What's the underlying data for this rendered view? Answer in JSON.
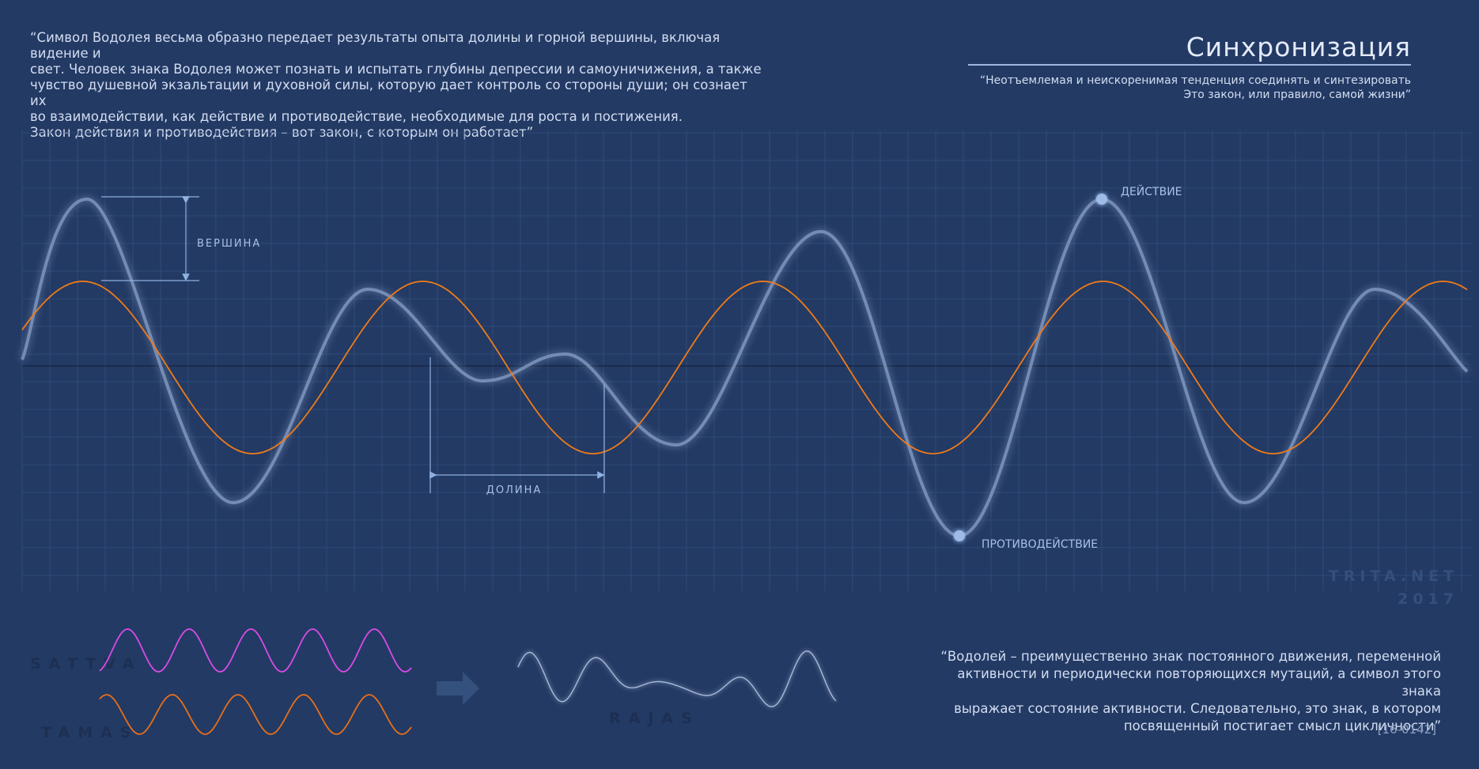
{
  "quote_left": "“Символ Водолея весьма образно передает результаты опыта долины и горной вершины, включая видение и\n   свет. Человек знака Водолея может познать и испытать глубины депрессии и самоуничижения, а также\n   чувство душевной экзальтации и духовной силы, которую дает контроль со стороны души; он сознает их\n   во взаимодействии, как действие и противодействие, необходимые для роста и постижения.\n   Закон действия и противодействия – вот закон, с которым он работает”",
  "title": "Синхронизация",
  "subtitle": "“Неотъемлемая и неискоренимая тенденция соединять и синтезировать\nЭто закон, или правило, самой жизни”",
  "diagram": {
    "label_peak": "ВЕРШИНА",
    "label_valley": "ДОЛИНА",
    "label_action": "ДЕЙСТВИЕ",
    "label_reaction": "ПРОТИВОДЕЙСТВИЕ",
    "watermark_site": "TRITA.NET",
    "watermark_year": "2017"
  },
  "legend": {
    "sattva": "SATTVA",
    "tamas": "TAMAS",
    "rajas": "RAJAS",
    "colors": {
      "sattva": "#d94be6",
      "tamas": "#e86f1a",
      "rajas": "#b7c8e6",
      "complex_wave": "#8fa6cf",
      "orange_wave": "#f07b18",
      "grid": "#3b5a8e"
    }
  },
  "quote_right": "“Водолей – преимущественно знак постоянного движения, переменной\nактивности и периодически повторяющихся мутаций, а символ этого знака\nвыражает состояние активности. Следовательно, это знак, в котором\nпосвященный постигает смысл цикличности”",
  "code": "[16-0142]"
}
